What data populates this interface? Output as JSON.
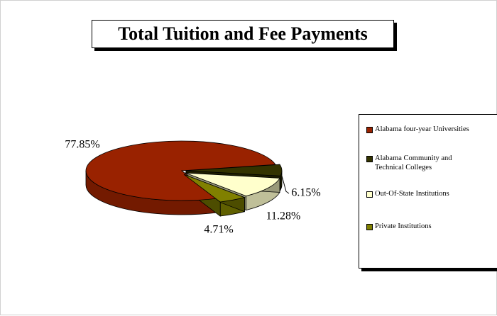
{
  "chart_data": {
    "type": "pie",
    "title": "Total Tuition and Fee Payments",
    "categories": [
      "Alabama four-year Universities",
      "Alabama Community and Technical Colleges",
      "Out-Of-State Institutions",
      "Private Institutions"
    ],
    "values": [
      77.85,
      6.15,
      11.28,
      4.71
    ],
    "value_labels": [
      "77.85%",
      "6.15%",
      "11.28%",
      "4.71%"
    ],
    "colors": [
      "#992200",
      "#333300",
      "#ffffcc",
      "#808000"
    ],
    "legend": "right"
  }
}
